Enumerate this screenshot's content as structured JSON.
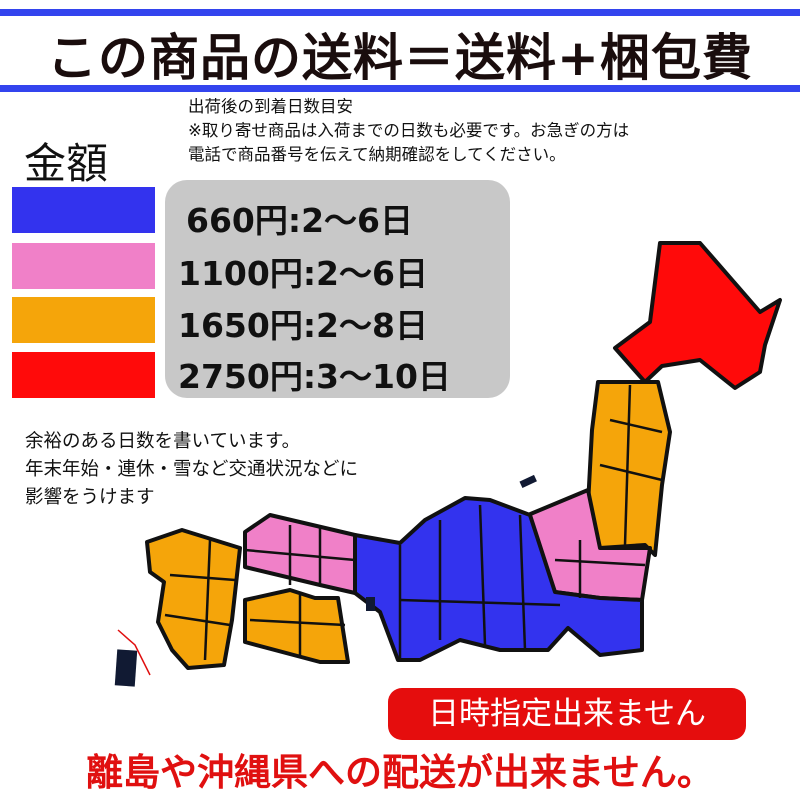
{
  "title": "この商品の送料＝送料+梱包費",
  "note": {
    "line1": "出荷後の到着日数目安",
    "line2": "※取り寄せ商品は入荷までの日数も必要です。お急ぎの方は",
    "line3": "電話で商品番号を伝えて納期確認をしてください。"
  },
  "amount_label": "金額",
  "tiers": [
    {
      "label": "660円:2〜6日",
      "color": "#3333ee"
    },
    {
      "label": "1100円:2〜6日",
      "color": "#f080c8"
    },
    {
      "label": "1650円:2〜8日",
      "color": "#f5a50a"
    },
    {
      "label": "2750円:3〜10日",
      "color": "#ff0a0a"
    }
  ],
  "remark": {
    "line1": "余裕のある日数を書いています。",
    "line2": "年末年始・連休・雪など交通状況などに",
    "line3": "影響をうけます"
  },
  "no_date_label": "日時指定出来ません",
  "island_notice": "離島や沖縄県への配送が出来ません。",
  "colors": {
    "accent_bar": "#3344ee",
    "notice_red": "#e50d0d"
  }
}
